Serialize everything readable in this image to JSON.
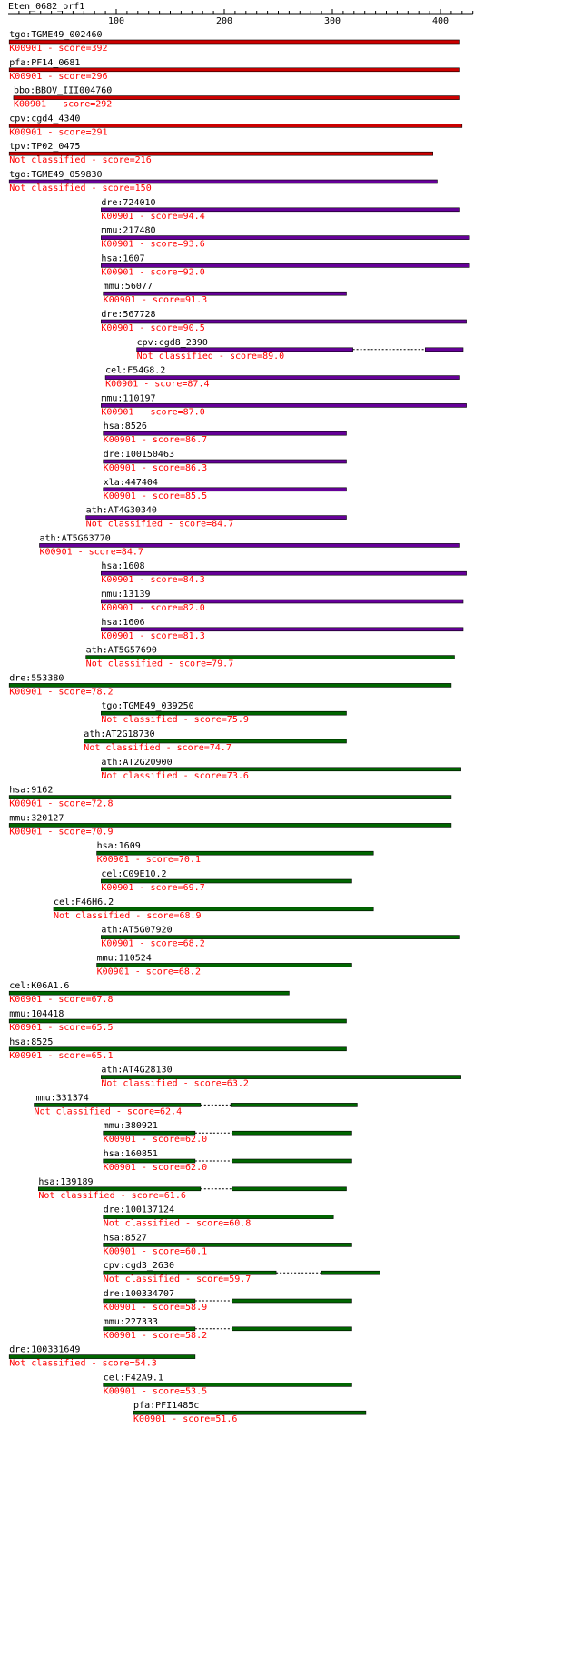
{
  "header": {
    "query": "Eten_0682_orf1"
  },
  "axis": {
    "min": 0,
    "max": 430,
    "ticks": [
      100,
      200,
      300,
      400
    ]
  },
  "colors": {
    "red": "#cc0000",
    "purple": "#660099",
    "green": "#006600",
    "label": "#000000",
    "score": "#ff0000"
  },
  "hits": [
    {
      "name": "tgo:TGME49_002460",
      "info": "K00901 - score=392",
      "color": "red",
      "segments": [
        [
          1,
          418
        ]
      ]
    },
    {
      "name": "pfa:PF14_0681",
      "info": "K00901 - score=296",
      "color": "red",
      "segments": [
        [
          1,
          418
        ]
      ]
    },
    {
      "name": "bbo:BBOV_III004760",
      "info": "K00901 - score=292",
      "color": "red",
      "segments": [
        [
          5,
          418
        ]
      ]
    },
    {
      "name": "cpv:cgd4_4340",
      "info": "K00901 - score=291",
      "color": "red",
      "segments": [
        [
          1,
          420
        ]
      ]
    },
    {
      "name": "tpv:TP02_0475",
      "info": "Not classified - score=216",
      "color": "red",
      "segments": [
        [
          1,
          393
        ]
      ]
    },
    {
      "name": "tgo:TGME49_059830",
      "info": "Not classified - score=150",
      "color": "purple",
      "segments": [
        [
          1,
          397
        ]
      ]
    },
    {
      "name": "dre:724010",
      "info": "K00901 - score=94.4",
      "color": "purple",
      "segments": [
        [
          86,
          418
        ]
      ]
    },
    {
      "name": "mmu:217480",
      "info": "K00901 - score=93.6",
      "color": "purple",
      "segments": [
        [
          86,
          427
        ]
      ]
    },
    {
      "name": "hsa:1607",
      "info": "K00901 - score=92.0",
      "color": "purple",
      "segments": [
        [
          86,
          427
        ]
      ]
    },
    {
      "name": "mmu:56077",
      "info": "K00901 - score=91.3",
      "color": "purple",
      "segments": [
        [
          88,
          313
        ]
      ]
    },
    {
      "name": "dre:567728",
      "info": "K00901 - score=90.5",
      "color": "purple",
      "segments": [
        [
          86,
          424
        ]
      ]
    },
    {
      "name": "cpv:cgd8_2390",
      "info": "Not classified - score=89.0",
      "color": "purple",
      "segments": [
        [
          119,
          319
        ],
        [
          386,
          421
        ]
      ]
    },
    {
      "name": "cel:F54G8.2",
      "info": "K00901 - score=87.4",
      "color": "purple",
      "segments": [
        [
          90,
          418
        ]
      ]
    },
    {
      "name": "mmu:110197",
      "info": "K00901 - score=87.0",
      "color": "purple",
      "segments": [
        [
          86,
          424
        ]
      ]
    },
    {
      "name": "hsa:8526",
      "info": "K00901 - score=86.7",
      "color": "purple",
      "segments": [
        [
          88,
          313
        ]
      ]
    },
    {
      "name": "dre:100150463",
      "info": "K00901 - score=86.3",
      "color": "purple",
      "segments": [
        [
          88,
          313
        ]
      ]
    },
    {
      "name": "xla:447404",
      "info": "K00901 - score=85.5",
      "color": "purple",
      "segments": [
        [
          88,
          313
        ]
      ]
    },
    {
      "name": "ath:AT4G30340",
      "info": "Not classified - score=84.7",
      "color": "purple",
      "segments": [
        [
          72,
          313
        ]
      ]
    },
    {
      "name": "ath:AT5G63770",
      "info": "K00901 - score=84.7",
      "color": "purple",
      "segments": [
        [
          29,
          418
        ]
      ]
    },
    {
      "name": "hsa:1608",
      "info": "K00901 - score=84.3",
      "color": "purple",
      "segments": [
        [
          86,
          424
        ]
      ]
    },
    {
      "name": "mmu:13139",
      "info": "K00901 - score=82.0",
      "color": "purple",
      "segments": [
        [
          86,
          421
        ]
      ]
    },
    {
      "name": "hsa:1606",
      "info": "K00901 - score=81.3",
      "color": "purple",
      "segments": [
        [
          86,
          421
        ]
      ]
    },
    {
      "name": "ath:AT5G57690",
      "info": "Not classified - score=79.7",
      "color": "green",
      "segments": [
        [
          72,
          413
        ]
      ]
    },
    {
      "name": "dre:553380",
      "info": "K00901 - score=78.2",
      "color": "green",
      "segments": [
        [
          1,
          410
        ]
      ]
    },
    {
      "name": "tgo:TGME49_039250",
      "info": "Not classified - score=75.9",
      "color": "green",
      "segments": [
        [
          86,
          313
        ]
      ]
    },
    {
      "name": "ath:AT2G18730",
      "info": "Not classified - score=74.7",
      "color": "green",
      "segments": [
        [
          70,
          313
        ]
      ]
    },
    {
      "name": "ath:AT2G20900",
      "info": "Not classified - score=73.6",
      "color": "green",
      "segments": [
        [
          86,
          419
        ]
      ]
    },
    {
      "name": "hsa:9162",
      "info": "K00901 - score=72.8",
      "color": "green",
      "segments": [
        [
          1,
          410
        ]
      ]
    },
    {
      "name": "mmu:320127",
      "info": "K00901 - score=70.9",
      "color": "green",
      "segments": [
        [
          1,
          410
        ]
      ]
    },
    {
      "name": "hsa:1609",
      "info": "K00901 - score=70.1",
      "color": "green",
      "segments": [
        [
          82,
          338
        ]
      ]
    },
    {
      "name": "cel:C09E10.2",
      "info": "K00901 - score=69.7",
      "color": "green",
      "segments": [
        [
          86,
          318
        ]
      ]
    },
    {
      "name": "cel:F46H6.2",
      "info": "Not classified - score=68.9",
      "color": "green",
      "segments": [
        [
          42,
          338
        ]
      ]
    },
    {
      "name": "ath:AT5G07920",
      "info": "K00901 - score=68.2",
      "color": "green",
      "segments": [
        [
          86,
          418
        ]
      ]
    },
    {
      "name": "mmu:110524",
      "info": "K00901 - score=68.2",
      "color": "green",
      "segments": [
        [
          82,
          318
        ]
      ]
    },
    {
      "name": "cel:K06A1.6",
      "info": "K00901 - score=67.8",
      "color": "green",
      "segments": [
        [
          1,
          260
        ]
      ]
    },
    {
      "name": "mmu:104418",
      "info": "K00901 - score=65.5",
      "color": "green",
      "segments": [
        [
          1,
          313
        ]
      ]
    },
    {
      "name": "hsa:8525",
      "info": "K00901 - score=65.1",
      "color": "green",
      "segments": [
        [
          1,
          313
        ]
      ]
    },
    {
      "name": "ath:AT4G28130",
      "info": "Not classified - score=63.2",
      "color": "green",
      "segments": [
        [
          86,
          419
        ]
      ]
    },
    {
      "name": "mmu:331374",
      "info": "Not classified - score=62.4",
      "color": "green",
      "segments": [
        [
          24,
          178
        ],
        [
          206,
          323
        ]
      ]
    },
    {
      "name": "mmu:380921",
      "info": "K00901 - score=62.0",
      "color": "green",
      "segments": [
        [
          88,
          173
        ],
        [
          207,
          318
        ]
      ]
    },
    {
      "name": "hsa:160851",
      "info": "K00901 - score=62.0",
      "color": "green",
      "segments": [
        [
          88,
          173
        ],
        [
          207,
          318
        ]
      ]
    },
    {
      "name": "hsa:139189",
      "info": "Not classified - score=61.6",
      "color": "green",
      "segments": [
        [
          28,
          178
        ],
        [
          207,
          313
        ]
      ]
    },
    {
      "name": "dre:100137124",
      "info": "Not classified - score=60.8",
      "color": "green",
      "segments": [
        [
          88,
          301
        ]
      ]
    },
    {
      "name": "hsa:8527",
      "info": "K00901 - score=60.1",
      "color": "green",
      "segments": [
        [
          88,
          318
        ]
      ]
    },
    {
      "name": "cpv:cgd3_2630",
      "info": "Not classified - score=59.7",
      "color": "green",
      "segments": [
        [
          88,
          248
        ],
        [
          290,
          344
        ]
      ]
    },
    {
      "name": "dre:100334707",
      "info": "K00901 - score=58.9",
      "color": "green",
      "segments": [
        [
          88,
          173
        ],
        [
          207,
          318
        ]
      ]
    },
    {
      "name": "mmu:227333",
      "info": "K00901 - score=58.2",
      "color": "green",
      "segments": [
        [
          88,
          173
        ],
        [
          207,
          318
        ]
      ]
    },
    {
      "name": "dre:100331649",
      "info": "Not classified - score=54.3",
      "color": "green",
      "segments": [
        [
          1,
          173
        ]
      ]
    },
    {
      "name": "cel:F42A9.1",
      "info": "K00901 - score=53.5",
      "color": "green",
      "segments": [
        [
          88,
          318
        ]
      ]
    },
    {
      "name": "pfa:PFI1485c",
      "info": "K00901 - score=51.6",
      "color": "green",
      "segments": [
        [
          116,
          331
        ]
      ]
    }
  ]
}
